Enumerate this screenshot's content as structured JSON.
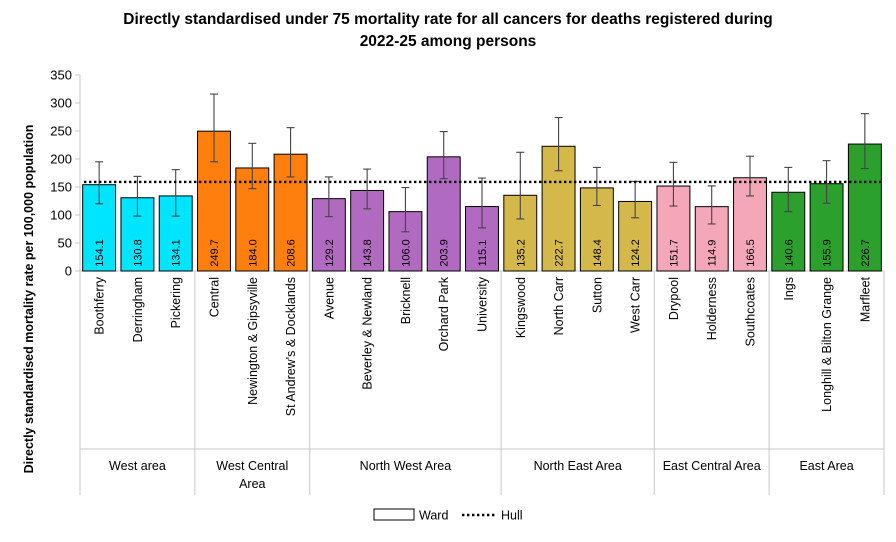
{
  "chart_data": {
    "type": "bar",
    "title_lines": [
      "Directly standardised under 75 mortality rate for all cancers for deaths registered during",
      "2022-25 among persons"
    ],
    "ylabel": "Directly standardised mortality rate per 100,000 population",
    "ylim": [
      0,
      350
    ],
    "yticks": [
      0,
      50,
      100,
      150,
      200,
      250,
      300,
      350
    ],
    "grid": false,
    "reference_line": {
      "name": "Hull",
      "value": 159
    },
    "legend": {
      "position": "bottom-center",
      "entries": [
        "Ward",
        "Hull"
      ]
    },
    "groups": [
      {
        "name": "West area",
        "color": "#00E5FF",
        "wards": [
          {
            "name": "Boothferry",
            "value": 154.1,
            "ci": [
              120,
              195
            ],
            "label": "154.1"
          },
          {
            "name": "Derringham",
            "value": 130.8,
            "ci": [
              98,
              169
            ],
            "label": "130.8"
          },
          {
            "name": "Pickering",
            "value": 134.1,
            "ci": [
              98,
              181
            ],
            "label": "134.1"
          }
        ]
      },
      {
        "name": "West Central Area",
        "name_lines": [
          "West Central",
          "Area"
        ],
        "color": "#FF7F0E",
        "wards": [
          {
            "name": "Central",
            "value": 249.7,
            "ci": [
              195,
              316
            ],
            "label": "249.7"
          },
          {
            "name": "Newington & Gipsyville",
            "value": 184.0,
            "ci": [
              147,
              228
            ],
            "label": "184.0"
          },
          {
            "name": "St Andrew's & Docklands",
            "value": 208.6,
            "ci": [
              168,
              256
            ],
            "label": "208.6"
          }
        ]
      },
      {
        "name": "North West Area",
        "color": "#B06AC0",
        "wards": [
          {
            "name": "Avenue",
            "value": 129.2,
            "ci": [
              97,
              168
            ],
            "label": "129.2"
          },
          {
            "name": "Beverley & Newland",
            "value": 143.8,
            "ci": [
              111,
              182
            ],
            "label": "143.8"
          },
          {
            "name": "Bricknell",
            "value": 106.0,
            "ci": [
              70,
              149
            ],
            "label": "106.0"
          },
          {
            "name": "Orchard Park",
            "value": 203.9,
            "ci": [
              165,
              249
            ],
            "label": "203.9"
          },
          {
            "name": "University",
            "value": 115.1,
            "ci": [
              77,
              166
            ],
            "label": "115.1"
          }
        ]
      },
      {
        "name": "North East Area",
        "color": "#D4B84A",
        "wards": [
          {
            "name": "Kingswood",
            "value": 135.2,
            "ci": [
              93,
              212
            ],
            "label": "135.2"
          },
          {
            "name": "North Carr",
            "value": 222.7,
            "ci": [
              179,
              274
            ],
            "label": "222.7"
          },
          {
            "name": "Sutton",
            "value": 148.4,
            "ci": [
              117,
              185
            ],
            "label": "148.4"
          },
          {
            "name": "West Carr",
            "value": 124.2,
            "ci": [
              95,
              160
            ],
            "label": "124.2"
          }
        ]
      },
      {
        "name": "East Central Area",
        "color": "#F4A7B9",
        "wards": [
          {
            "name": "Drypool",
            "value": 151.7,
            "ci": [
              116,
              194
            ],
            "label": "151.7"
          },
          {
            "name": "Holderness",
            "value": 114.9,
            "ci": [
              84,
              152
            ],
            "label": "114.9"
          },
          {
            "name": "Southcoates",
            "value": 166.5,
            "ci": [
              134,
              205
            ],
            "label": "166.5"
          }
        ]
      },
      {
        "name": "East Area",
        "color": "#2CA02C",
        "wards": [
          {
            "name": "Ings",
            "value": 140.6,
            "ci": [
              106,
              185
            ],
            "label": "140.6"
          },
          {
            "name": "Longhill & Bilton Grange",
            "value": 155.9,
            "ci": [
              121,
              197
            ],
            "label": "155.9"
          },
          {
            "name": "Marfleet",
            "value": 226.7,
            "ci": [
              183,
              281
            ],
            "label": "226.7"
          }
        ]
      }
    ]
  }
}
